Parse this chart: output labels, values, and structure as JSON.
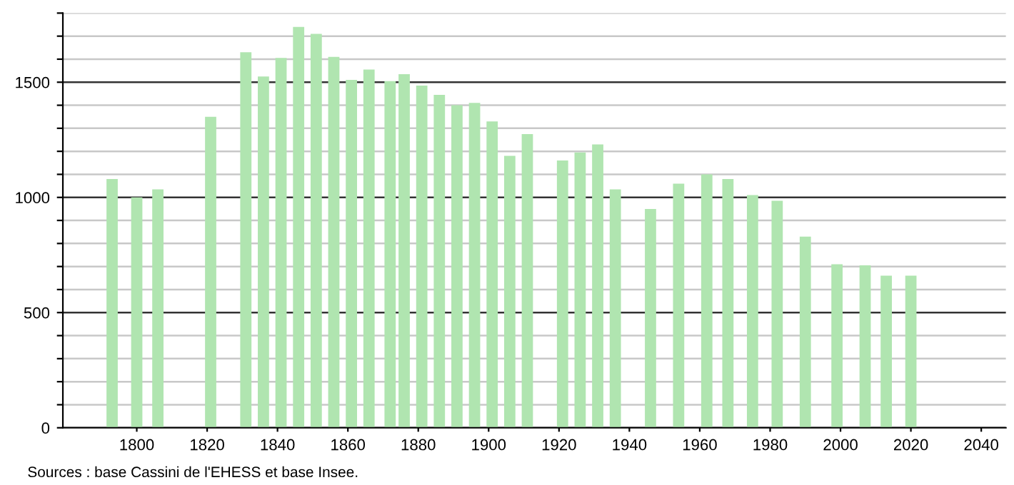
{
  "chart_data": {
    "type": "bar",
    "x": [
      1793,
      1800,
      1806,
      1821,
      1831,
      1836,
      1841,
      1846,
      1851,
      1856,
      1861,
      1866,
      1872,
      1876,
      1881,
      1886,
      1891,
      1896,
      1901,
      1906,
      1911,
      1921,
      1926,
      1931,
      1936,
      1946,
      1954,
      1962,
      1968,
      1975,
      1982,
      1990,
      1999,
      2007,
      2013,
      2020
    ],
    "values": [
      1080,
      1000,
      1035,
      1350,
      1630,
      1525,
      1605,
      1740,
      1710,
      1610,
      1510,
      1555,
      1505,
      1535,
      1485,
      1445,
      1400,
      1410,
      1330,
      1180,
      1275,
      1160,
      1195,
      1230,
      1035,
      950,
      1060,
      1100,
      1080,
      1010,
      985,
      830,
      710,
      705,
      660,
      660
    ],
    "color": "#b0e5b0",
    "xlim": [
      1779,
      2047
    ],
    "xticks": [
      1800,
      1820,
      1840,
      1860,
      1880,
      1900,
      1920,
      1940,
      1960,
      1980,
      2000,
      2020,
      2040
    ],
    "ylim": [
      0,
      1800
    ],
    "yticks": [
      0,
      {
        "value": 100,
        "label": null
      },
      {
        "value": 200,
        "label": null
      },
      {
        "value": 300,
        "label": null
      },
      {
        "value": 400,
        "label": null
      },
      500,
      {
        "value": 600,
        "label": null
      },
      {
        "value": 700,
        "label": null
      },
      {
        "value": 800,
        "label": null
      },
      {
        "value": 900,
        "label": null
      },
      1000,
      {
        "value": 1100,
        "label": null
      },
      {
        "value": 1200,
        "label": null
      },
      {
        "value": 1300,
        "label": null
      },
      {
        "value": 1400,
        "label": null
      },
      1500,
      {
        "value": 1600,
        "label": null
      },
      {
        "value": 1700,
        "label": null
      },
      {
        "value": 1800,
        "label": null
      }
    ],
    "grid": "y",
    "annotations": [
      "Sources : base Cassini de l'EHESS et base Insee."
    ]
  }
}
